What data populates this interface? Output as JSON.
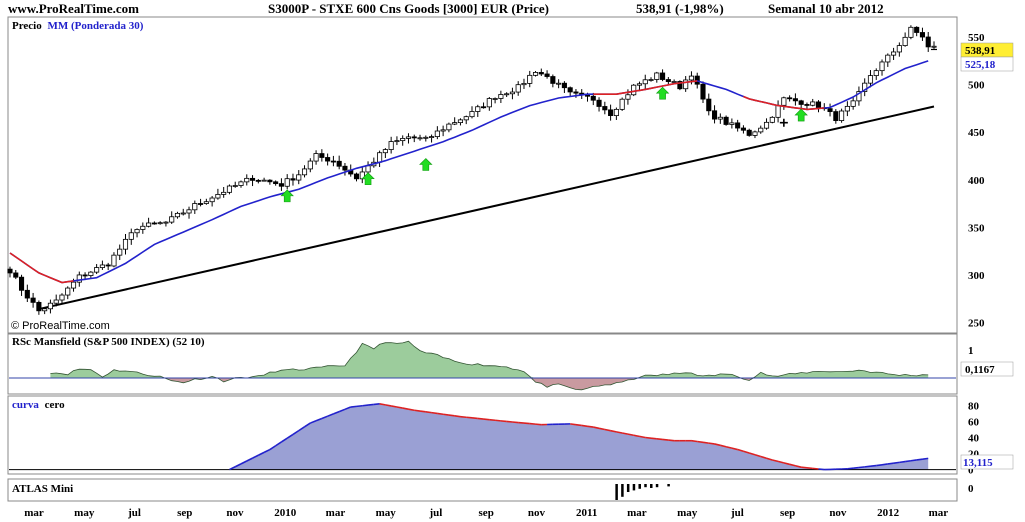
{
  "header": {
    "site": "www.ProRealTime.com",
    "instrument": "S3000P - STXE 600 Cns Goods [3000] EUR (Price)",
    "last": "538,91 (-1,98%)",
    "period": "Semanal 10 abr 2012"
  },
  "colors": {
    "ma": "#2222cc",
    "ma_red": "#dd2222",
    "trendline": "#000000",
    "rsc_pos": "#9ccc9c",
    "rsc_neg": "#c99aa0",
    "curva_fill": "#9aa0d4",
    "arrow": "#22dd22"
  },
  "chart_data": [
    {
      "type": "candlestick",
      "panel": "price",
      "legend_label_1": "Precio",
      "legend_label_2": "MM (Ponderada 30)",
      "copyright": "© ProRealTime.com",
      "ylim": [
        242,
        568
      ],
      "y_ticks": [
        250,
        300,
        350,
        400,
        450,
        500,
        550
      ],
      "last_price": 538.91,
      "last_price_label": "538,91",
      "ma_last": 525.18,
      "ma_last_label": "525,18",
      "close_anchors": [
        [
          0,
          305
        ],
        [
          2,
          285
        ],
        [
          5,
          262
        ],
        [
          8,
          272
        ],
        [
          12,
          298
        ],
        [
          17,
          312
        ],
        [
          22,
          350
        ],
        [
          27,
          355
        ],
        [
          32,
          373
        ],
        [
          37,
          388
        ],
        [
          42,
          402
        ],
        [
          47,
          395
        ],
        [
          50,
          406
        ],
        [
          53,
          425
        ],
        [
          56,
          420
        ],
        [
          60,
          402
        ],
        [
          63,
          420
        ],
        [
          66,
          438
        ],
        [
          69,
          445
        ],
        [
          72,
          442
        ],
        [
          76,
          458
        ],
        [
          80,
          470
        ],
        [
          84,
          488
        ],
        [
          88,
          497
        ],
        [
          91,
          515
        ],
        [
          93,
          508
        ],
        [
          97,
          490
        ],
        [
          101,
          485
        ],
        [
          104,
          470
        ],
        [
          108,
          498
        ],
        [
          112,
          510
        ],
        [
          116,
          498
        ],
        [
          118,
          512
        ],
        [
          121,
          470
        ],
        [
          124,
          460
        ],
        [
          128,
          448
        ],
        [
          131,
          460
        ],
        [
          134,
          485
        ],
        [
          137,
          482
        ],
        [
          140,
          478
        ],
        [
          143,
          465
        ],
        [
          146,
          480
        ],
        [
          149,
          510
        ],
        [
          153,
          535
        ],
        [
          156,
          558
        ],
        [
          158,
          551
        ],
        [
          159,
          539
        ]
      ],
      "ma_anchors": [
        [
          0,
          323
        ],
        [
          5,
          302
        ],
        [
          9,
          292
        ],
        [
          15,
          297
        ],
        [
          20,
          312
        ],
        [
          25,
          332
        ],
        [
          30,
          345
        ],
        [
          35,
          358
        ],
        [
          40,
          372
        ],
        [
          45,
          382
        ],
        [
          50,
          390
        ],
        [
          55,
          402
        ],
        [
          60,
          412
        ],
        [
          65,
          420
        ],
        [
          70,
          430
        ],
        [
          75,
          440
        ],
        [
          80,
          452
        ],
        [
          85,
          466
        ],
        [
          90,
          478
        ],
        [
          95,
          486
        ],
        [
          100,
          490
        ],
        [
          105,
          490
        ],
        [
          110,
          495
        ],
        [
          115,
          501
        ],
        [
          119,
          504
        ],
        [
          124,
          495
        ],
        [
          128,
          485
        ],
        [
          133,
          478
        ],
        [
          138,
          474
        ],
        [
          142,
          476
        ],
        [
          146,
          487
        ],
        [
          150,
          502
        ],
        [
          155,
          517
        ],
        [
          159,
          525
        ]
      ],
      "ma_red_ranges": [
        [
          0,
          11
        ],
        [
          101,
          119
        ],
        [
          127,
          141
        ]
      ],
      "trendline": [
        [
          5,
          264
        ],
        [
          160,
          477
        ]
      ],
      "up_arrows": [
        [
          48,
          382
        ],
        [
          62,
          400
        ],
        [
          72,
          415
        ],
        [
          113,
          490
        ],
        [
          137,
          467
        ]
      ],
      "cross_marker": [
        134,
        460
      ],
      "dash_marker": [
        160,
        537
      ]
    },
    {
      "type": "area",
      "panel": "rsc",
      "title": "RSc Mansfield (S&P 500 INDEX) (52 10)",
      "ylim": [
        -0.5,
        1.5
      ],
      "y_ticks": [
        1,
        0
      ],
      "last_value": 0.1167,
      "last_label": "0,1167",
      "anchors": [
        [
          7,
          0.2
        ],
        [
          10,
          0.15
        ],
        [
          12,
          0.32
        ],
        [
          14,
          0.3
        ],
        [
          16,
          0.05
        ],
        [
          18,
          0.28
        ],
        [
          20,
          0.26
        ],
        [
          23,
          0.15
        ],
        [
          26,
          0.05
        ],
        [
          28,
          -0.1
        ],
        [
          30,
          -0.15
        ],
        [
          32,
          -0.05
        ],
        [
          35,
          0.05
        ],
        [
          37,
          -0.1
        ],
        [
          40,
          0.02
        ],
        [
          43,
          0.05
        ],
        [
          46,
          0.25
        ],
        [
          50,
          0.3
        ],
        [
          53,
          0.35
        ],
        [
          55,
          0.4
        ],
        [
          58,
          0.45
        ],
        [
          61,
          1.2
        ],
        [
          63,
          1.05
        ],
        [
          65,
          1.3
        ],
        [
          67,
          1.2
        ],
        [
          69,
          1.3
        ],
        [
          71,
          0.95
        ],
        [
          74,
          0.8
        ],
        [
          77,
          0.6
        ],
        [
          80,
          0.5
        ],
        [
          83,
          0.45
        ],
        [
          86,
          0.4
        ],
        [
          89,
          0.25
        ],
        [
          91,
          -0.15
        ],
        [
          93,
          -0.3
        ],
        [
          95,
          -0.25
        ],
        [
          97,
          -0.35
        ],
        [
          99,
          -0.45
        ],
        [
          101,
          -0.3
        ],
        [
          103,
          -0.25
        ],
        [
          105,
          -0.2
        ],
        [
          107,
          -0.1
        ],
        [
          109,
          0.05
        ],
        [
          112,
          0.1
        ],
        [
          115,
          0.15
        ],
        [
          118,
          0.2
        ],
        [
          120,
          0.05
        ],
        [
          122,
          0.1
        ],
        [
          124,
          0.15
        ],
        [
          126,
          0.05
        ],
        [
          128,
          -0.05
        ],
        [
          130,
          0.2
        ],
        [
          132,
          0.05
        ],
        [
          134,
          0.1
        ],
        [
          136,
          0.15
        ],
        [
          138,
          0.2
        ],
        [
          141,
          0.25
        ],
        [
          144,
          0.22
        ],
        [
          147,
          0.28
        ],
        [
          150,
          0.2
        ],
        [
          153,
          0.12
        ],
        [
          156,
          0.1
        ],
        [
          159,
          0.12
        ]
      ]
    },
    {
      "type": "area",
      "panel": "curva",
      "title_1": "curva",
      "title_2": "cero",
      "ylim": [
        -3,
        88
      ],
      "y_ticks": [
        80,
        60,
        40,
        20,
        0
      ],
      "last_value": 13.115,
      "last_label": "13,115",
      "anchors": [
        [
          38,
          0
        ],
        [
          45,
          25
        ],
        [
          52,
          58
        ],
        [
          59,
          78
        ],
        [
          64,
          82
        ],
        [
          70,
          74
        ],
        [
          78,
          66
        ],
        [
          86,
          60
        ],
        [
          92,
          56
        ],
        [
          97,
          57
        ],
        [
          101,
          53
        ],
        [
          105,
          47
        ],
        [
          110,
          40
        ],
        [
          115,
          36
        ],
        [
          118,
          36
        ],
        [
          122,
          32
        ],
        [
          126,
          25
        ],
        [
          132,
          12
        ],
        [
          137,
          3
        ],
        [
          141,
          0
        ],
        [
          145,
          1
        ],
        [
          150,
          5
        ],
        [
          155,
          10
        ],
        [
          159,
          14
        ]
      ],
      "red_ranges": [
        [
          64,
          92
        ],
        [
          97,
          118
        ],
        [
          118,
          139
        ]
      ]
    },
    {
      "type": "bar",
      "panel": "atlas",
      "title": "ATLAS Mini",
      "y_ticks": [
        0
      ],
      "bars": [
        [
          105,
          -1.0
        ],
        [
          106,
          -0.8
        ],
        [
          107,
          -0.5
        ],
        [
          108,
          -0.4
        ],
        [
          109,
          -0.3
        ],
        [
          110,
          -0.2
        ],
        [
          111,
          -0.25
        ],
        [
          112,
          -0.2
        ],
        [
          114,
          -0.15
        ]
      ]
    }
  ],
  "x_axis": {
    "labels": [
      "mar",
      "may",
      "jul",
      "sep",
      "nov",
      "2010",
      "mar",
      "may",
      "jul",
      "sep",
      "nov",
      "2011",
      "mar",
      "may",
      "jul",
      "sep",
      "nov",
      "2012",
      "mar"
    ],
    "start_label": "mar",
    "label_step_weeks": 8.7
  }
}
